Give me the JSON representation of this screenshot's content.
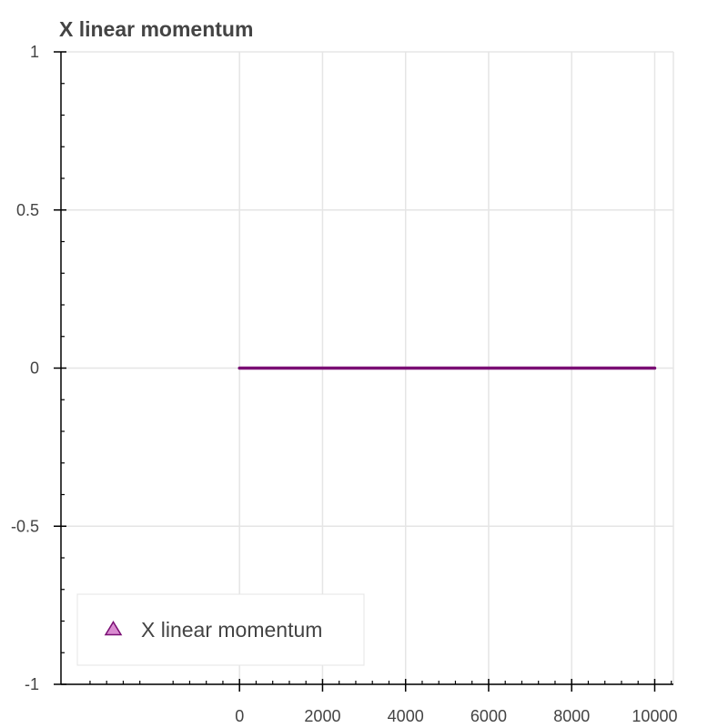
{
  "chart_data": {
    "type": "line",
    "title": "X linear momentum",
    "xlabel": "",
    "ylabel": "",
    "xlim": [
      -4300,
      10450
    ],
    "ylim": [
      -1,
      1
    ],
    "x_ticks": [
      0,
      2000,
      4000,
      6000,
      8000,
      10000
    ],
    "x_tick_labels": [
      "0",
      "2000",
      "4000",
      "6000",
      "8000",
      "10000"
    ],
    "x_minor_step": 400,
    "y_ticks": [
      1,
      0.5,
      0,
      -0.5,
      -1
    ],
    "y_tick_labels": [
      "1",
      "0.5",
      "0",
      "-0.5",
      "-1"
    ],
    "y_minor_step": 0.1,
    "grid": true,
    "legend_position": "bottom-left",
    "series": [
      {
        "name": "X linear momentum",
        "color": "#7a0f74",
        "marker": "triangle",
        "marker_fill": "#d98bd0",
        "x": [
          0,
          10000
        ],
        "y": [
          0,
          0
        ]
      }
    ]
  }
}
